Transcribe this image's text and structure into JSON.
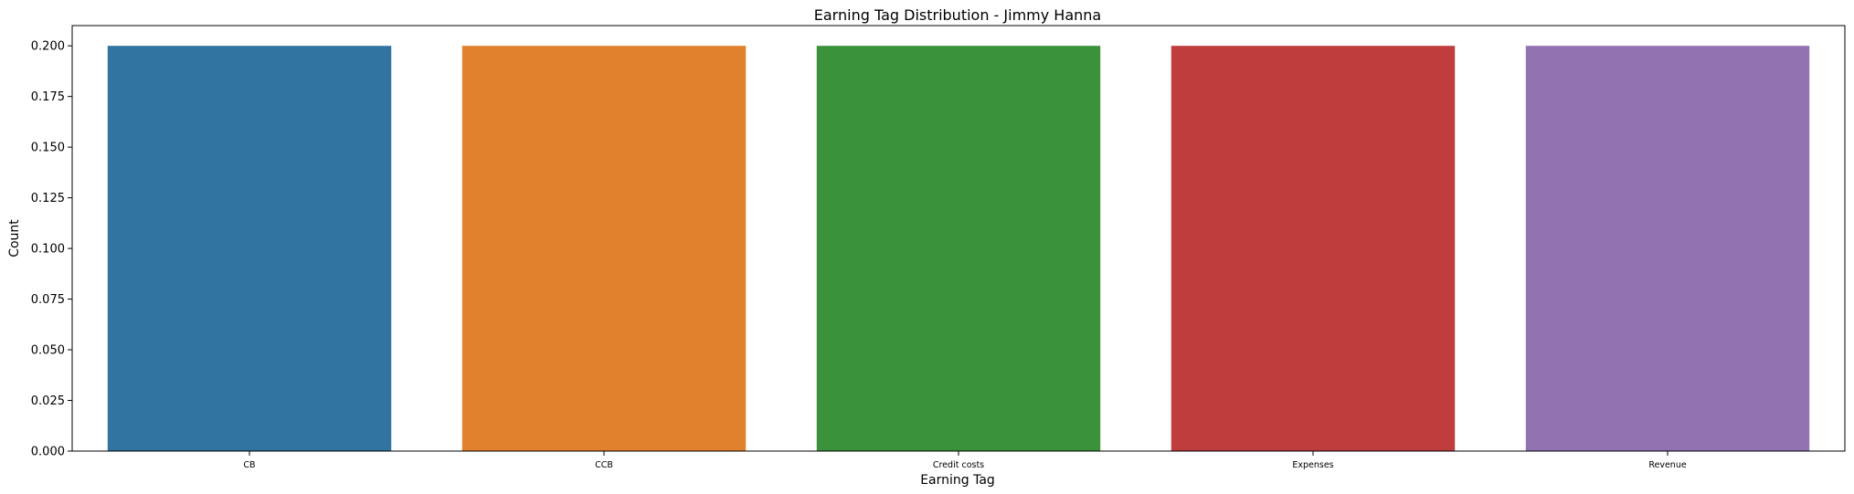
{
  "chart_data": {
    "type": "bar",
    "title": "Earning Tag Distribution - Jimmy Hanna",
    "xlabel": "Earning Tag",
    "ylabel": "Count",
    "categories": [
      "CB",
      "CCB",
      "Credit costs",
      "Expenses",
      "Revenue"
    ],
    "values": [
      0.2,
      0.2,
      0.2,
      0.2,
      0.2
    ],
    "colors": [
      "#3274a1",
      "#e1812c",
      "#3a923a",
      "#c03d3e",
      "#9372b2"
    ],
    "ylim": [
      0,
      0.21
    ],
    "yticks": [
      0.0,
      0.025,
      0.05,
      0.075,
      0.1,
      0.125,
      0.15,
      0.175,
      0.2
    ],
    "ytick_labels": [
      "0.000",
      "0.025",
      "0.050",
      "0.075",
      "0.100",
      "0.125",
      "0.150",
      "0.175",
      "0.200"
    ],
    "grid": false,
    "legend": "none"
  }
}
